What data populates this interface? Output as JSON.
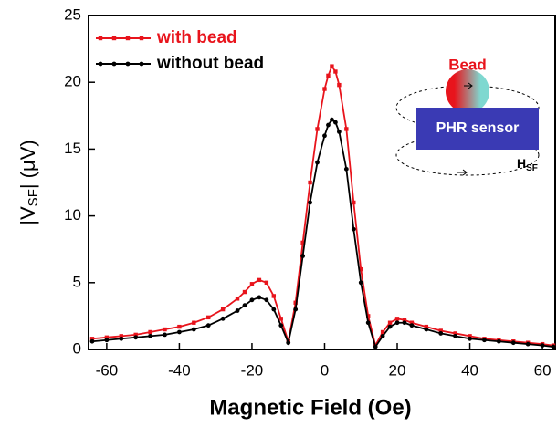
{
  "chart_data": {
    "type": "line",
    "x_label": "Magnetic Field (Oe)",
    "y_label": {
      "main": "|V",
      "sub": "SF",
      "rest": "| (μV)"
    },
    "xlim": [
      -65,
      63.5
    ],
    "xticks": [
      -60,
      -40,
      -20,
      0,
      20,
      40,
      60
    ],
    "ylim": [
      0,
      25
    ],
    "yticks": [
      0,
      5,
      10,
      15,
      20,
      25
    ],
    "legend": "upper left",
    "x": [
      -64,
      -60,
      -56,
      -52,
      -48,
      -44,
      -40,
      -36,
      -32,
      -28,
      -24,
      -22,
      -20,
      -18,
      -16,
      -14,
      -12,
      -10,
      -8,
      -6,
      -4,
      -2,
      0,
      1,
      2,
      3,
      4,
      6,
      8,
      10,
      12,
      14,
      16,
      18,
      20,
      22,
      24,
      28,
      32,
      36,
      40,
      44,
      48,
      52,
      56,
      60,
      63
    ],
    "series": [
      {
        "name": "with bead",
        "color": "#e8141c",
        "marker": "square",
        "values": [
          0.8,
          0.9,
          1.0,
          1.1,
          1.3,
          1.5,
          1.7,
          2.0,
          2.4,
          3.0,
          3.8,
          4.3,
          4.9,
          5.2,
          5.0,
          4.0,
          2.3,
          0.6,
          3.5,
          8.0,
          12.5,
          16.5,
          19.5,
          20.5,
          21.2,
          20.8,
          19.8,
          16.5,
          11.0,
          6.0,
          2.5,
          0.3,
          1.3,
          2.0,
          2.3,
          2.2,
          2.0,
          1.7,
          1.4,
          1.2,
          1.0,
          0.8,
          0.7,
          0.6,
          0.5,
          0.4,
          0.3
        ]
      },
      {
        "name": "without bead",
        "color": "#000000",
        "marker": "circle",
        "values": [
          0.6,
          0.7,
          0.8,
          0.9,
          1.0,
          1.1,
          1.3,
          1.5,
          1.8,
          2.3,
          2.9,
          3.3,
          3.7,
          3.9,
          3.7,
          3.0,
          1.8,
          0.5,
          3.0,
          7.0,
          11.0,
          14.0,
          16.0,
          16.8,
          17.2,
          17.0,
          16.3,
          13.5,
          9.0,
          5.0,
          2.0,
          0.2,
          1.0,
          1.7,
          2.0,
          2.0,
          1.8,
          1.5,
          1.2,
          1.0,
          0.8,
          0.7,
          0.6,
          0.5,
          0.4,
          0.3,
          0.2
        ]
      }
    ],
    "annotations": {
      "bead": "Bead",
      "sensor": "PHR sensor",
      "field": {
        "main": "H",
        "sub": "SF"
      }
    }
  }
}
